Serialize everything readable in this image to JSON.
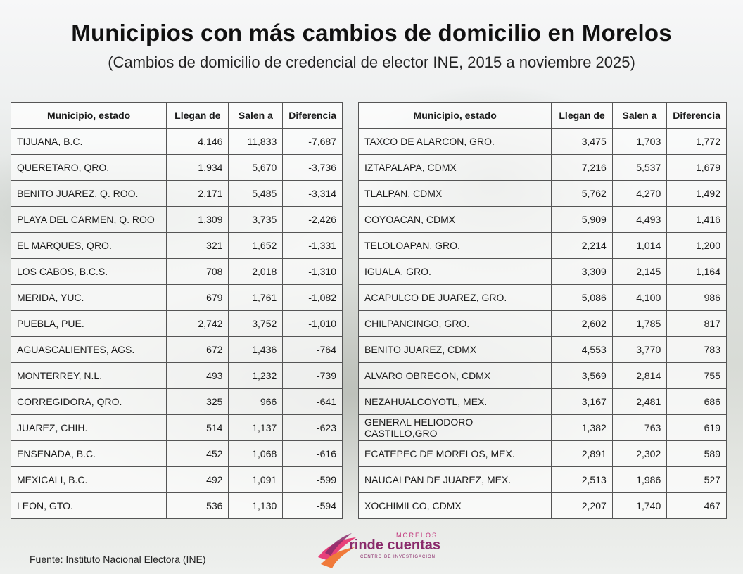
{
  "title": "Municipios con más cambios de domicilio en Morelos",
  "subtitle": "(Cambios de domicilio de credencial de elector INE, 2015 a noviembre 2025)",
  "headers": [
    "Municipio, estado",
    "Llegan de",
    "Salen a",
    "Diferencia"
  ],
  "left_table": [
    [
      "TIJUANA, B.C.",
      "4,146",
      "11,833",
      "-7,687"
    ],
    [
      "QUERETARO, QRO.",
      "1,934",
      "5,670",
      "-3,736"
    ],
    [
      "BENITO JUAREZ, Q. ROO.",
      "2,171",
      "5,485",
      "-3,314"
    ],
    [
      "PLAYA DEL CARMEN, Q. ROO",
      "1,309",
      "3,735",
      "-2,426"
    ],
    [
      "EL MARQUES, QRO.",
      "321",
      "1,652",
      "-1,331"
    ],
    [
      "LOS CABOS, B.C.S.",
      "708",
      "2,018",
      "-1,310"
    ],
    [
      "MERIDA, YUC.",
      "679",
      "1,761",
      "-1,082"
    ],
    [
      "PUEBLA, PUE.",
      "2,742",
      "3,752",
      "-1,010"
    ],
    [
      "AGUASCALIENTES, AGS.",
      "672",
      "1,436",
      "-764"
    ],
    [
      "MONTERREY, N.L.",
      "493",
      "1,232",
      "-739"
    ],
    [
      "CORREGIDORA, QRO.",
      "325",
      "966",
      "-641"
    ],
    [
      "JUAREZ, CHIH.",
      "514",
      "1,137",
      "-623"
    ],
    [
      "ENSENADA, B.C.",
      "452",
      "1,068",
      "-616"
    ],
    [
      "MEXICALI, B.C.",
      "492",
      "1,091",
      "-599"
    ],
    [
      "LEON, GTO.",
      "536",
      "1,130",
      "-594"
    ]
  ],
  "right_table": [
    [
      "TAXCO DE ALARCON, GRO.",
      "3,475",
      "1,703",
      "1,772"
    ],
    [
      "IZTAPALAPA, CDMX",
      "7,216",
      "5,537",
      "1,679"
    ],
    [
      "TLALPAN, CDMX",
      "5,762",
      "4,270",
      "1,492"
    ],
    [
      "COYOACAN, CDMX",
      "5,909",
      "4,493",
      "1,416"
    ],
    [
      "TELOLOAPAN, GRO.",
      "2,214",
      "1,014",
      "1,200"
    ],
    [
      "IGUALA, GRO.",
      "3,309",
      "2,145",
      "1,164"
    ],
    [
      "ACAPULCO DE JUAREZ, GRO.",
      "5,086",
      "4,100",
      "986"
    ],
    [
      "CHILPANCINGO, GRO.",
      "2,602",
      "1,785",
      "817"
    ],
    [
      "BENITO JUAREZ, CDMX",
      "4,553",
      "3,770",
      "783"
    ],
    [
      "ALVARO OBREGON, CDMX",
      "3,569",
      "2,814",
      "755"
    ],
    [
      "NEZAHUALCOYOTL, MEX.",
      "3,167",
      "2,481",
      "686"
    ],
    [
      "GENERAL HELIODORO CASTILLO,GRO",
      "1,382",
      "763",
      "619"
    ],
    [
      "ECATEPEC DE MORELOS, MEX.",
      "2,891",
      "2,302",
      "589"
    ],
    [
      "NAUCALPAN DE JUAREZ, MEX.",
      "2,513",
      "1,986",
      "527"
    ],
    [
      "XOCHIMILCO, CDMX",
      "2,207",
      "1,740",
      "467"
    ]
  ],
  "footer": "Fuente: Instituto Nacional Electora (INE)",
  "logo": {
    "top": "MORELOS",
    "main": "rinde cuentas",
    "sub": "CENTRO DE INVESTIGACIÓN",
    "colors": [
      "#e8407a",
      "#f07a3a",
      "#8a2b6b"
    ]
  }
}
